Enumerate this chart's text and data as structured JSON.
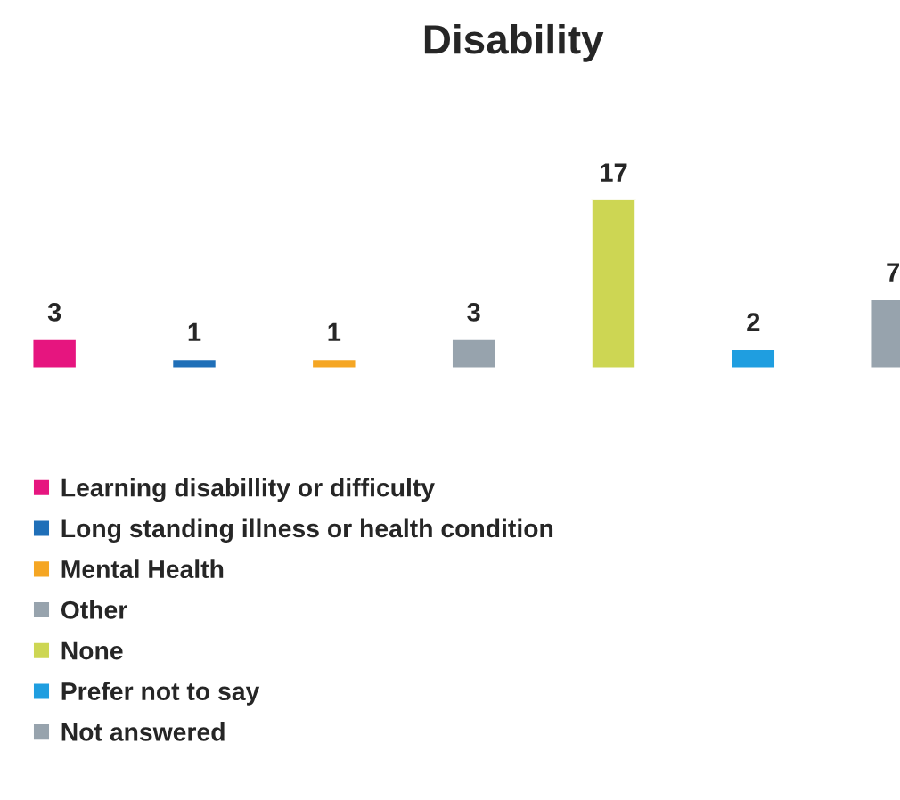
{
  "chart_data": {
    "type": "bar",
    "title": "Disability",
    "categories": [
      null,
      null,
      null,
      null,
      null,
      null,
      null
    ],
    "stacked": true,
    "series": [
      {
        "name": "Learning disabillity or difficulty",
        "color": "#e6157f",
        "values": [
          3,
          null,
          null,
          null,
          null,
          null,
          null
        ]
      },
      {
        "name": "Long standing illness or health condition",
        "color": "#1f6fb8",
        "values": [
          null,
          1,
          null,
          null,
          null,
          null,
          null
        ]
      },
      {
        "name": "Mental Health",
        "color": "#f5a623",
        "values": [
          null,
          null,
          1,
          null,
          null,
          null,
          null
        ]
      },
      {
        "name": "Other",
        "color": "#97a3ad",
        "values": [
          null,
          null,
          null,
          3,
          null,
          null,
          null
        ]
      },
      {
        "name": "None",
        "color": "#cdd653",
        "values": [
          null,
          null,
          null,
          null,
          17,
          null,
          null
        ]
      },
      {
        "name": "Prefer not to say",
        "color": "#1f9ee0",
        "values": [
          null,
          null,
          null,
          null,
          null,
          2,
          null
        ]
      },
      {
        "name": "Not answered",
        "color": "#97a3ad",
        "values": [
          null,
          null,
          null,
          null,
          null,
          null,
          7
        ]
      }
    ],
    "data_labels": true,
    "tick_labels": false,
    "legend": "bottom"
  }
}
